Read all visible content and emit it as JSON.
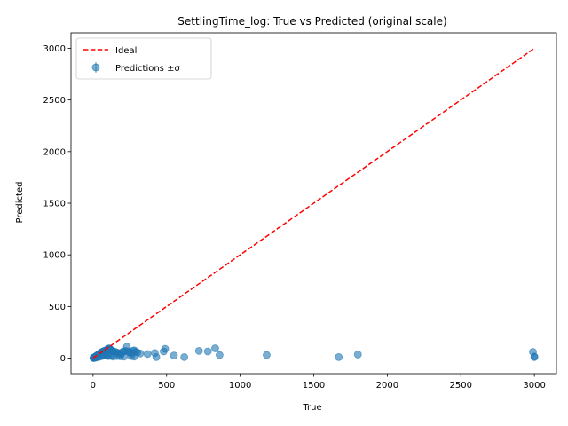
{
  "chart_data": {
    "type": "scatter",
    "title": "SettlingTime_log: True vs Predicted (original scale)",
    "xlabel": "True",
    "ylabel": "Predicted",
    "xlim": [
      -150,
      3150
    ],
    "ylim": [
      -150,
      3150
    ],
    "xticks": [
      0,
      500,
      1000,
      1500,
      2000,
      2500,
      3000
    ],
    "yticks": [
      0,
      500,
      1000,
      1500,
      2000,
      2500,
      3000
    ],
    "grid": false,
    "legend_position": "top-left",
    "colors": {
      "points": "#1f77b4",
      "ideal": "#ff0000"
    },
    "series": [
      {
        "name": "Ideal",
        "kind": "line",
        "style": "dashed",
        "x": [
          0,
          3000
        ],
        "y": [
          0,
          3000
        ]
      },
      {
        "name": "Predictions ±σ",
        "kind": "scatter",
        "x": [
          2,
          4,
          6,
          8,
          10,
          12,
          14,
          16,
          18,
          20,
          22,
          25,
          28,
          30,
          33,
          36,
          40,
          44,
          48,
          52,
          55,
          58,
          62,
          66,
          70,
          74,
          78,
          82,
          86,
          90,
          95,
          100,
          105,
          110,
          115,
          120,
          125,
          130,
          140,
          150,
          160,
          170,
          180,
          190,
          200,
          210,
          220,
          230,
          240,
          250,
          260,
          270,
          280,
          290,
          300,
          320,
          370,
          420,
          430,
          480,
          490,
          550,
          620,
          720,
          780,
          830,
          860,
          1180,
          1670,
          1800,
          2990,
          3000,
          3000,
          5,
          15,
          25,
          35,
          45,
          60,
          75,
          85,
          95,
          105,
          120,
          135,
          160,
          185,
          210,
          260,
          280
        ],
        "y": [
          2,
          3,
          5,
          6,
          8,
          10,
          12,
          14,
          15,
          18,
          20,
          22,
          25,
          28,
          30,
          35,
          38,
          40,
          45,
          50,
          55,
          58,
          60,
          62,
          65,
          68,
          70,
          72,
          75,
          78,
          80,
          85,
          90,
          95,
          88,
          80,
          75,
          70,
          65,
          60,
          55,
          50,
          45,
          40,
          60,
          65,
          70,
          110,
          65,
          55,
          45,
          70,
          75,
          60,
          55,
          45,
          40,
          50,
          10,
          65,
          90,
          25,
          10,
          70,
          65,
          95,
          30,
          30,
          10,
          35,
          60,
          15,
          10,
          1,
          4,
          8,
          12,
          15,
          20,
          25,
          30,
          35,
          20,
          25,
          15,
          20,
          18,
          15,
          20,
          15
        ]
      }
    ]
  }
}
